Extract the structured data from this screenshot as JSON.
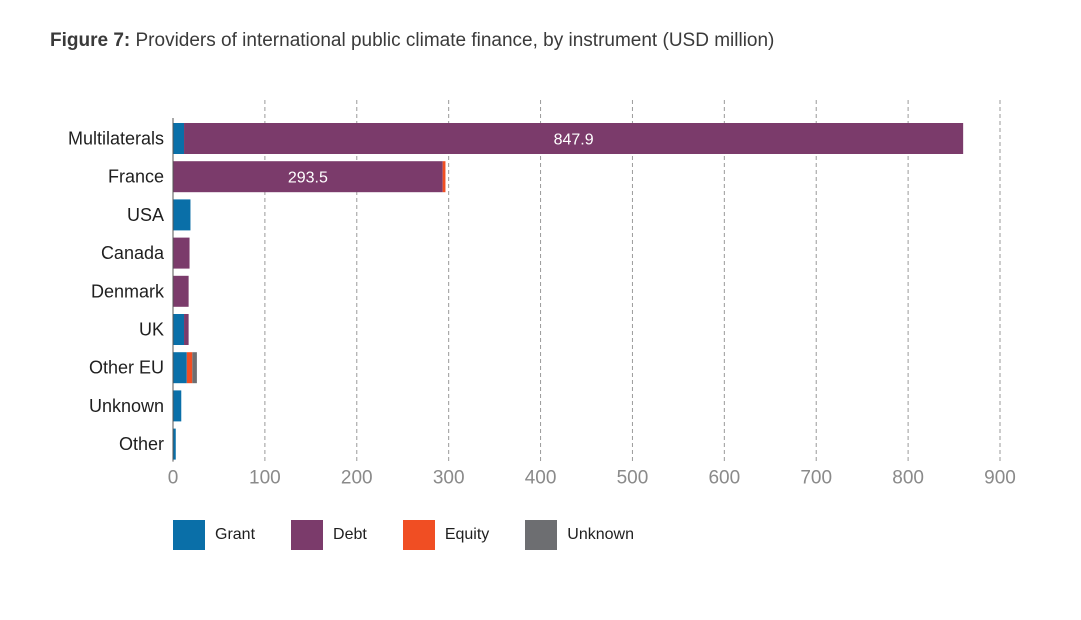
{
  "figure": {
    "title_lead": "Figure 7:",
    "title_rest": " Providers of international public climate finance, by instrument (USD million)"
  },
  "chart_data": {
    "type": "bar",
    "orientation": "horizontal",
    "stacked": true,
    "categories": [
      "Multilaterals",
      "France",
      "USA",
      "Canada",
      "Denmark",
      "UK",
      "Other EU",
      "Unknown",
      "Other"
    ],
    "series": [
      {
        "name": "Grant",
        "color": "#0a6fa8",
        "values": [
          12,
          0,
          19,
          0,
          0,
          12,
          15,
          9,
          3
        ]
      },
      {
        "name": "Debt",
        "color": "#7b3b6b",
        "values": [
          847.9,
          293.5,
          0,
          18,
          17,
          5,
          0,
          0,
          0
        ]
      },
      {
        "name": "Equity",
        "color": "#f04e23",
        "values": [
          0,
          3,
          0,
          0,
          0,
          0,
          6,
          0,
          0
        ]
      },
      {
        "name": "Unknown",
        "color": "#6d6e71",
        "values": [
          0,
          0,
          0,
          0,
          0,
          0,
          5,
          0,
          0
        ]
      }
    ],
    "data_labels": [
      {
        "category": "Multilaterals",
        "series": "Debt",
        "text": "847.9"
      },
      {
        "category": "France",
        "series": "Debt",
        "text": "293.5"
      }
    ],
    "xlim": [
      0,
      900
    ],
    "xticks": [
      0,
      100,
      200,
      300,
      400,
      500,
      600,
      700,
      800,
      900
    ],
    "xlabel": "",
    "ylabel": "",
    "grid": "vertical dashed",
    "legend_position": "bottom-left"
  }
}
